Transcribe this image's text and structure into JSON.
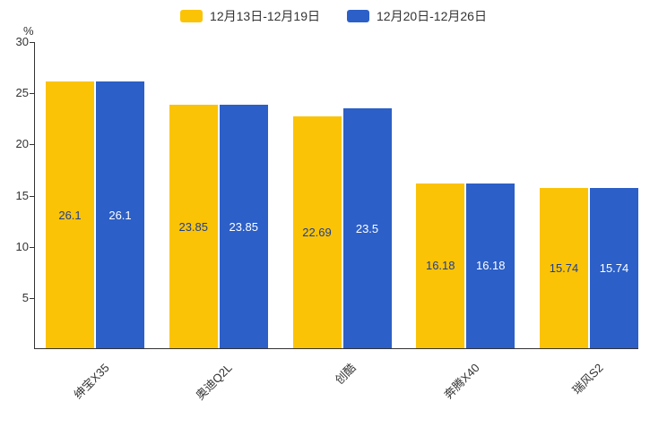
{
  "chart_data": {
    "type": "bar",
    "title": "",
    "categories": [
      "绅宝X35",
      "奥迪Q2L",
      "创酷",
      "奔腾X40",
      "瑞风S2"
    ],
    "series": [
      {
        "name": "12月13日-12月19日",
        "color": "#FBC306",
        "label_color": "#1D3E93",
        "values": [
          26.1,
          23.85,
          22.69,
          16.18,
          15.74
        ]
      },
      {
        "name": "12月20日-12月26日",
        "color": "#2C5FC7",
        "label_color": "#FFFFFF",
        "values": [
          26.1,
          23.85,
          23.5,
          16.18,
          15.74
        ]
      }
    ],
    "ylabel": "%",
    "ylim": [
      0,
      30
    ],
    "yticks": [
      5,
      10,
      15,
      20,
      25,
      30
    ],
    "legend_position": "top",
    "grid": false
  }
}
